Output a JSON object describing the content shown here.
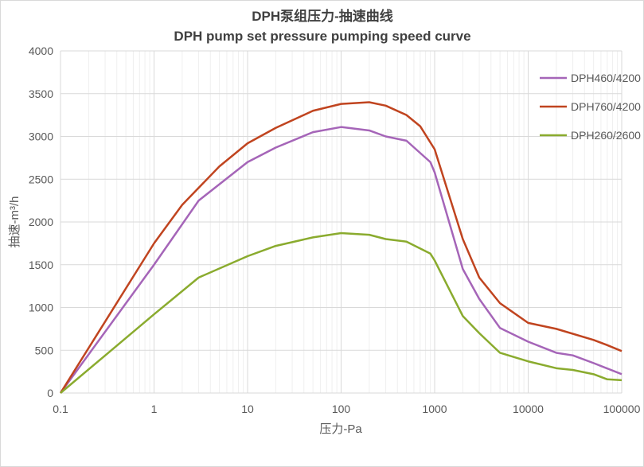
{
  "chart_data": {
    "type": "line",
    "title": "DPH泵组压力-抽速曲线",
    "subtitle": "DPH pump set pressure pumping speed curve",
    "xlabel": "压力-Pa",
    "ylabel": "抽速-m³/h",
    "xscale": "log",
    "xlim": [
      0.1,
      100000
    ],
    "ylim": [
      0,
      4000
    ],
    "xticks": [
      "0.1",
      "1",
      "10",
      "100",
      "1000",
      "10000",
      "100000"
    ],
    "yticks": [
      "0",
      "500",
      "1000",
      "1500",
      "2000",
      "2500",
      "3000",
      "3500",
      "4000"
    ],
    "grid": true,
    "legend_position": "right",
    "series": [
      {
        "name": "DPH460/4200",
        "color": "#a565b8",
        "x": [
          0.1,
          1,
          3,
          10,
          20,
          50,
          100,
          200,
          300,
          500,
          900,
          1000,
          2000,
          3000,
          5000,
          10000,
          20000,
          30000,
          50000,
          100000
        ],
        "y": [
          0,
          1500,
          2250,
          2700,
          2870,
          3050,
          3110,
          3070,
          3000,
          2950,
          2700,
          2580,
          1450,
          1100,
          760,
          600,
          470,
          440,
          350,
          220
        ]
      },
      {
        "name": "DPH760/4200",
        "color": "#c0441f",
        "x": [
          0.1,
          1,
          2,
          5,
          10,
          20,
          50,
          100,
          200,
          300,
          500,
          700,
          1000,
          2000,
          3000,
          5000,
          10000,
          20000,
          50000,
          70000,
          100000
        ],
        "y": [
          0,
          1750,
          2200,
          2650,
          2920,
          3100,
          3300,
          3380,
          3400,
          3360,
          3250,
          3120,
          2850,
          1800,
          1350,
          1050,
          820,
          750,
          620,
          560,
          490
        ]
      },
      {
        "name": "DPH260/2600",
        "color": "#8aab2e",
        "x": [
          0.1,
          1,
          3,
          10,
          20,
          50,
          100,
          200,
          300,
          500,
          900,
          1000,
          2000,
          3000,
          5000,
          10000,
          20000,
          30000,
          50000,
          70000,
          100000
        ],
        "y": [
          0,
          920,
          1350,
          1600,
          1720,
          1820,
          1870,
          1850,
          1800,
          1770,
          1630,
          1550,
          900,
          700,
          470,
          370,
          290,
          270,
          220,
          160,
          150
        ]
      }
    ]
  }
}
